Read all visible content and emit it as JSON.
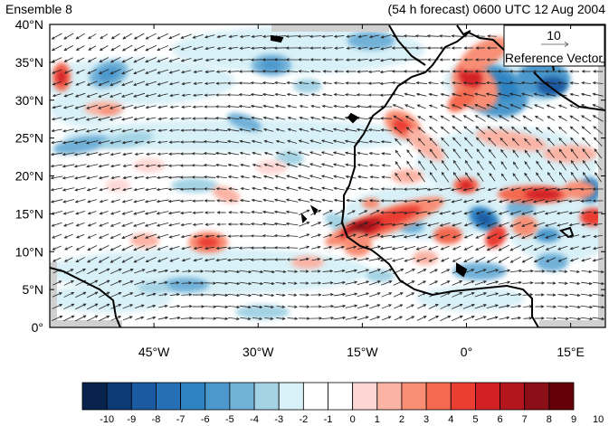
{
  "header": {
    "left_title": "Ensemble 8",
    "right_title": "(54 h forecast) 0600 UTC 12 Aug 2004"
  },
  "map": {
    "lat_labels": [
      "40°N",
      "35°N",
      "30°N",
      "25°N",
      "20°N",
      "15°N",
      "10°N",
      "5°N",
      "0°"
    ],
    "lon_labels": [
      "45°W",
      "30°W",
      "15°W",
      "0°",
      "15°E"
    ],
    "extent": {
      "lon": [
        -60,
        20
      ],
      "lat": [
        0,
        40
      ]
    },
    "reference_vector": {
      "magnitude": "10",
      "label": "Reference Vector"
    }
  },
  "colorbar": {
    "colors": [
      "#08234e",
      "#0b3a75",
      "#1a5aa0",
      "#2570b5",
      "#2f83c2",
      "#4c98cc",
      "#71b1d8",
      "#a3d3e4",
      "#d8f0f7",
      "#ffffff",
      "#ffffff",
      "#fdd7d4",
      "#fbb3a4",
      "#f88e74",
      "#f4694f",
      "#ea3e33",
      "#d32026",
      "#b4161e",
      "#8c0e16",
      "#650008"
    ],
    "labels": [
      "-10",
      "-9",
      "-8",
      "-7",
      "-6",
      "-5",
      "-4",
      "-3",
      "-2",
      "-1",
      "0",
      "1",
      "2",
      "3",
      "4",
      "5",
      "6",
      "7",
      "8",
      "9",
      "10"
    ]
  }
}
